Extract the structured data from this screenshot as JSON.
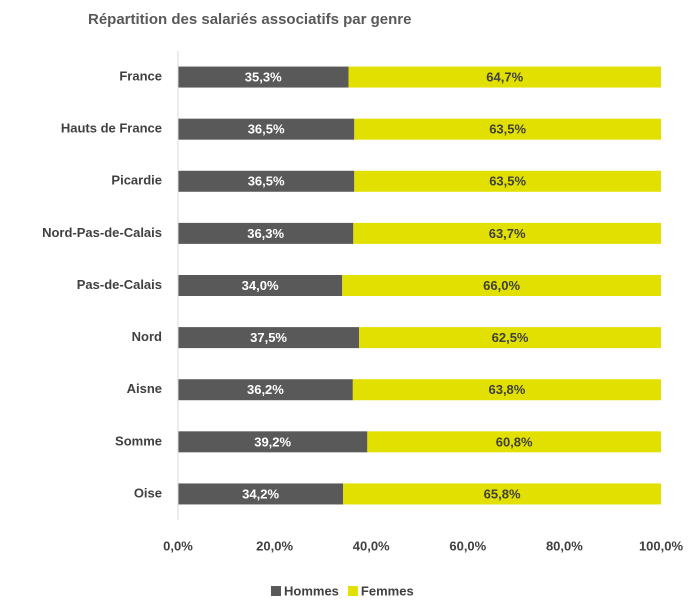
{
  "chart_data": {
    "type": "bar",
    "orientation": "horizontal",
    "stacked": true,
    "title": "Répartition des salariés associatifs par genre",
    "categories": [
      "France",
      "Hauts de France",
      "Picardie",
      "Nord-Pas-de-Calais",
      "Pas-de-Calais",
      "Nord",
      "Aisne",
      "Somme",
      "Oise"
    ],
    "series": [
      {
        "name": "Hommes",
        "color": "#595959",
        "label_color": "#ffffff",
        "values": [
          35.3,
          36.5,
          36.5,
          36.3,
          34.0,
          37.5,
          36.2,
          39.2,
          34.2
        ],
        "value_labels": [
          "35,3%",
          "36,5%",
          "36,5%",
          "36,3%",
          "34,0%",
          "37,5%",
          "36,2%",
          "39,2%",
          "34,2%"
        ]
      },
      {
        "name": "Femmes",
        "color": "#e2e000",
        "label_color": "#404040",
        "values": [
          64.7,
          63.5,
          63.5,
          63.7,
          66.0,
          62.5,
          63.8,
          60.8,
          65.8
        ],
        "value_labels": [
          "64,7%",
          "63,5%",
          "63,5%",
          "63,7%",
          "66,0%",
          "62,5%",
          "63,8%",
          "60,8%",
          "65,8%"
        ]
      }
    ],
    "xlim": [
      0,
      100
    ],
    "xticks": [
      {
        "value": 0,
        "label": "0,0%"
      },
      {
        "value": 20,
        "label": "20,0%"
      },
      {
        "value": 40,
        "label": "40,0%"
      },
      {
        "value": 60,
        "label": "60,0%"
      },
      {
        "value": 80,
        "label": "80,0%"
      },
      {
        "value": 100,
        "label": "100,0%"
      }
    ],
    "grid": false,
    "legend": "bottom"
  }
}
